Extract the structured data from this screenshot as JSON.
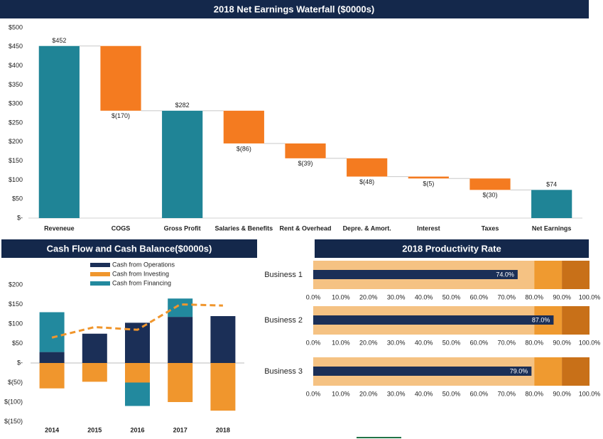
{
  "chart_data": [
    {
      "type": "waterfall",
      "title": "2018 Net Earnings Waterfall ($0000s)",
      "categories": [
        "Reveneue",
        "COGS",
        "Gross Profit",
        "Salaries & Benefits",
        "Rent & Overhead",
        "Depre. & Amort.",
        "Interest",
        "Taxes",
        "Net Earnings"
      ],
      "values": [
        452,
        -170,
        282,
        -86,
        -39,
        -48,
        -5,
        -30,
        74
      ],
      "value_labels": [
        "$452",
        "$(170)",
        "$282",
        "$(86)",
        "$(39)",
        "$(48)",
        "$(5)",
        "$(30)",
        "$74"
      ],
      "colors": {
        "total": "#1f8496",
        "decrease": "#f47b20"
      },
      "ylim": [
        0,
        500
      ],
      "yticks": [
        {
          "value": 0,
          "label": "$-"
        },
        {
          "value": 50,
          "label": "$50"
        },
        {
          "value": 100,
          "label": "$100"
        },
        {
          "value": 150,
          "label": "$150"
        },
        {
          "value": 200,
          "label": "$200"
        },
        {
          "value": 250,
          "label": "$250"
        },
        {
          "value": 300,
          "label": "$300"
        },
        {
          "value": 350,
          "label": "$350"
        },
        {
          "value": 400,
          "label": "$400"
        },
        {
          "value": 450,
          "label": "$450"
        },
        {
          "value": 500,
          "label": "$500"
        }
      ]
    },
    {
      "type": "stacked_bar_line",
      "title": "Cash Flow and Cash Balance($0000s)",
      "categories": [
        "2014",
        "2015",
        "2016",
        "2017",
        "2018"
      ],
      "series": [
        {
          "name": "Cash from Operations",
          "color": "#1b2f57",
          "values": [
            28,
            75,
            103,
            118,
            120
          ]
        },
        {
          "name": "Cash from Investing",
          "color": "#f0962d",
          "values": [
            -65,
            -48,
            -50,
            -100,
            -122
          ]
        },
        {
          "name": "Cash from Financing",
          "color": "#22899e",
          "values": [
            102,
            0,
            -60,
            47,
            0
          ]
        }
      ],
      "line": {
        "values": [
          65,
          92,
          85,
          150,
          147
        ],
        "color": "#f0962d",
        "dashed": true
      },
      "ylim": [
        -150,
        200
      ],
      "yticks": [
        {
          "value": -150,
          "label": "$(150)"
        },
        {
          "value": -100,
          "label": "$(100)"
        },
        {
          "value": -50,
          "label": "$(50)"
        },
        {
          "value": 0,
          "label": "$-"
        },
        {
          "value": 50,
          "label": "$50"
        },
        {
          "value": 100,
          "label": "$100"
        },
        {
          "value": 150,
          "label": "$150"
        },
        {
          "value": 200,
          "label": "$200"
        }
      ]
    },
    {
      "type": "bullet",
      "title": "2018 Productivity Rate",
      "categories": [
        "Business 1",
        "Business 2",
        "Business 3"
      ],
      "values": [
        74,
        87,
        79
      ],
      "value_labels": [
        "74.0%",
        "87.0%",
        "79.0%"
      ],
      "color": "#1b2f57",
      "bands": [
        80,
        90,
        100
      ],
      "band_colors": [
        "#f5c283",
        "#ef9a30",
        "#c87018"
      ],
      "xlim": [
        0,
        100
      ],
      "xticks": [
        {
          "value": 0,
          "label": "0.0%"
        },
        {
          "value": 10,
          "label": "10.0%"
        },
        {
          "value": 20,
          "label": "20.0%"
        },
        {
          "value": 30,
          "label": "30.0%"
        },
        {
          "value": 40,
          "label": "40.0%"
        },
        {
          "value": 50,
          "label": "50.0%"
        },
        {
          "value": 60,
          "label": "60.0%"
        },
        {
          "value": 70,
          "label": "70.0%"
        },
        {
          "value": 80,
          "label": "80.0%"
        },
        {
          "value": 90,
          "label": "90.0%"
        },
        {
          "value": 100,
          "label": "100.0%"
        }
      ]
    }
  ]
}
